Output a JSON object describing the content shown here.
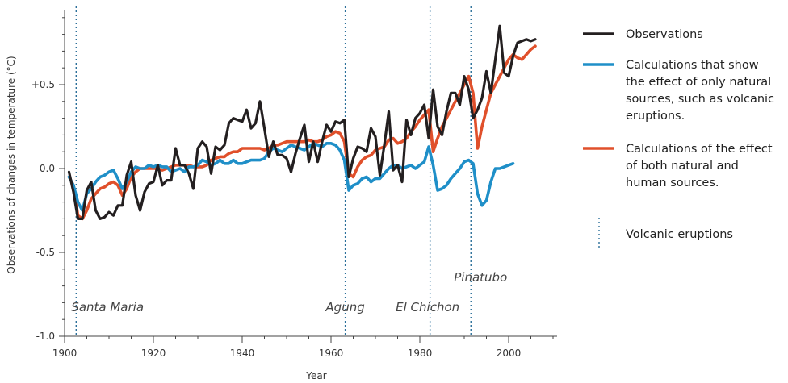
{
  "chart_data": {
    "type": "line",
    "xlabel": "Year",
    "ylabel": "Observations of changes in temperature (°C)",
    "xlim": [
      1900,
      2010
    ],
    "ylim": [
      -1.0,
      1.0
    ],
    "x_ticks": [
      1900,
      1920,
      1940,
      1960,
      1980,
      2000
    ],
    "y_ticks": [
      {
        "value": 0.5,
        "label": "+0.5"
      },
      {
        "value": 0.0,
        "label": "0.0"
      },
      {
        "value": -0.5,
        "label": "-0.5"
      },
      {
        "value": -1.0,
        "label": "-1.0"
      }
    ],
    "grid": false,
    "legend_position": "right",
    "series": [
      {
        "name": "Observations",
        "color": "#231f20",
        "x": [
          1901,
          1902,
          1903,
          1904,
          1905,
          1906,
          1907,
          1908,
          1909,
          1910,
          1911,
          1912,
          1913,
          1914,
          1915,
          1916,
          1917,
          1918,
          1919,
          1920,
          1921,
          1922,
          1923,
          1924,
          1925,
          1926,
          1927,
          1928,
          1929,
          1930,
          1931,
          1932,
          1933,
          1934,
          1935,
          1936,
          1937,
          1938,
          1939,
          1940,
          1941,
          1942,
          1943,
          1944,
          1945,
          1946,
          1947,
          1948,
          1949,
          1950,
          1951,
          1952,
          1953,
          1954,
          1955,
          1956,
          1957,
          1958,
          1959,
          1960,
          1961,
          1962,
          1963,
          1964,
          1965,
          1966,
          1967,
          1968,
          1969,
          1970,
          1971,
          1972,
          1973,
          1974,
          1975,
          1976,
          1977,
          1978,
          1979,
          1980,
          1981,
          1982,
          1983,
          1984,
          1985,
          1986,
          1987,
          1988,
          1989,
          1990,
          1991,
          1992,
          1993,
          1994,
          1995,
          1996,
          1997,
          1998,
          1999,
          2000,
          2001,
          2002,
          2003,
          2004,
          2005,
          2006
        ],
        "values": [
          -0.02,
          -0.14,
          -0.3,
          -0.3,
          -0.13,
          -0.08,
          -0.25,
          -0.3,
          -0.29,
          -0.26,
          -0.28,
          -0.22,
          -0.22,
          -0.04,
          0.04,
          -0.16,
          -0.25,
          -0.14,
          -0.09,
          -0.08,
          0.02,
          -0.1,
          -0.07,
          -0.07,
          0.12,
          0.02,
          0.02,
          -0.03,
          -0.12,
          0.12,
          0.16,
          0.13,
          -0.03,
          0.13,
          0.11,
          0.14,
          0.27,
          0.3,
          0.29,
          0.28,
          0.35,
          0.24,
          0.27,
          0.4,
          0.24,
          0.07,
          0.16,
          0.08,
          0.08,
          0.06,
          -0.02,
          0.09,
          0.18,
          0.26,
          0.04,
          0.16,
          0.04,
          0.16,
          0.26,
          0.22,
          0.28,
          0.27,
          0.29,
          -0.05,
          0.06,
          0.13,
          0.12,
          0.1,
          0.24,
          0.19,
          -0.04,
          0.14,
          0.34,
          -0.01,
          0.02,
          -0.08,
          0.29,
          0.2,
          0.3,
          0.33,
          0.38,
          0.18,
          0.47,
          0.25,
          0.2,
          0.34,
          0.45,
          0.45,
          0.38,
          0.55,
          0.47,
          0.3,
          0.35,
          0.42,
          0.58,
          0.45,
          0.65,
          0.85,
          0.57,
          0.55,
          0.67,
          0.75,
          0.76,
          0.77,
          0.76,
          0.77
        ]
      },
      {
        "name": "Calculations that show the effect of only natural sources, such as volcanic eruptions.",
        "color": "#1f8fc8",
        "x": [
          1901,
          1902,
          1903,
          1904,
          1905,
          1906,
          1907,
          1908,
          1909,
          1910,
          1911,
          1912,
          1913,
          1914,
          1915,
          1916,
          1917,
          1918,
          1919,
          1920,
          1921,
          1922,
          1923,
          1924,
          1925,
          1926,
          1927,
          1928,
          1929,
          1930,
          1931,
          1932,
          1933,
          1934,
          1935,
          1936,
          1937,
          1938,
          1939,
          1940,
          1941,
          1942,
          1943,
          1944,
          1945,
          1946,
          1947,
          1948,
          1949,
          1950,
          1951,
          1952,
          1953,
          1954,
          1955,
          1956,
          1957,
          1958,
          1959,
          1960,
          1961,
          1962,
          1963,
          1964,
          1965,
          1966,
          1967,
          1968,
          1969,
          1970,
          1971,
          1972,
          1973,
          1974,
          1975,
          1976,
          1977,
          1978,
          1979,
          1980,
          1981,
          1982,
          1983,
          1984,
          1985,
          1986,
          1987,
          1988,
          1989,
          1990,
          1991,
          1992,
          1993,
          1994,
          1995,
          1996,
          1997,
          1998,
          1999,
          2000,
          2001
        ],
        "values": [
          -0.05,
          -0.1,
          -0.2,
          -0.25,
          -0.15,
          -0.12,
          -0.08,
          -0.05,
          -0.04,
          -0.02,
          -0.01,
          -0.06,
          -0.12,
          -0.08,
          -0.02,
          0.01,
          0.0,
          0.0,
          0.02,
          0.01,
          0.02,
          0.01,
          0.01,
          -0.02,
          -0.01,
          0.0,
          -0.02,
          0.01,
          0.01,
          0.02,
          0.05,
          0.04,
          0.02,
          0.03,
          0.05,
          0.03,
          0.03,
          0.05,
          0.03,
          0.03,
          0.04,
          0.05,
          0.05,
          0.05,
          0.06,
          0.1,
          0.12,
          0.11,
          0.1,
          0.12,
          0.14,
          0.13,
          0.12,
          0.11,
          0.13,
          0.15,
          0.14,
          0.13,
          0.15,
          0.15,
          0.14,
          0.11,
          0.05,
          -0.13,
          -0.1,
          -0.09,
          -0.06,
          -0.05,
          -0.08,
          -0.06,
          -0.06,
          -0.03,
          0.0,
          0.02,
          0.02,
          0.0,
          0.01,
          0.02,
          0.0,
          0.02,
          0.04,
          0.13,
          0.02,
          -0.13,
          -0.12,
          -0.1,
          -0.06,
          -0.03,
          0.0,
          0.04,
          0.05,
          0.03,
          -0.15,
          -0.22,
          -0.19,
          -0.08,
          0.0,
          0.0,
          0.01,
          0.02,
          0.03
        ]
      },
      {
        "name": "Calculations of the effect of both natural and human sources.",
        "color": "#e0502b",
        "x": [
          1901,
          1902,
          1903,
          1904,
          1905,
          1906,
          1907,
          1908,
          1909,
          1910,
          1911,
          1912,
          1913,
          1914,
          1915,
          1916,
          1917,
          1918,
          1919,
          1920,
          1921,
          1922,
          1923,
          1924,
          1925,
          1926,
          1927,
          1928,
          1929,
          1930,
          1931,
          1932,
          1933,
          1934,
          1935,
          1936,
          1937,
          1938,
          1939,
          1940,
          1941,
          1942,
          1943,
          1944,
          1945,
          1946,
          1947,
          1948,
          1949,
          1950,
          1951,
          1952,
          1953,
          1954,
          1955,
          1956,
          1957,
          1958,
          1959,
          1960,
          1961,
          1962,
          1963,
          1964,
          1965,
          1966,
          1967,
          1968,
          1969,
          1970,
          1971,
          1972,
          1973,
          1974,
          1975,
          1976,
          1977,
          1978,
          1979,
          1980,
          1981,
          1982,
          1983,
          1984,
          1985,
          1986,
          1987,
          1988,
          1989,
          1990,
          1991,
          1992,
          1993,
          1994,
          1995,
          1996,
          1997,
          1998,
          1999,
          2000,
          2001,
          2002,
          2003,
          2004,
          2005,
          2006
        ],
        "values": [
          -0.05,
          -0.1,
          -0.28,
          -0.3,
          -0.25,
          -0.18,
          -0.15,
          -0.12,
          -0.11,
          -0.09,
          -0.08,
          -0.1,
          -0.16,
          -0.12,
          -0.05,
          -0.02,
          0.0,
          0.0,
          0.0,
          0.0,
          0.0,
          -0.01,
          0.0,
          0.01,
          0.02,
          0.02,
          0.02,
          0.02,
          0.01,
          0.01,
          0.01,
          0.02,
          0.05,
          0.06,
          0.07,
          0.07,
          0.09,
          0.1,
          0.1,
          0.12,
          0.12,
          0.12,
          0.12,
          0.12,
          0.11,
          0.12,
          0.14,
          0.14,
          0.15,
          0.16,
          0.16,
          0.16,
          0.16,
          0.16,
          0.17,
          0.16,
          0.16,
          0.17,
          0.19,
          0.2,
          0.22,
          0.21,
          0.16,
          -0.03,
          -0.05,
          0.01,
          0.05,
          0.07,
          0.08,
          0.11,
          0.12,
          0.13,
          0.17,
          0.18,
          0.15,
          0.16,
          0.18,
          0.22,
          0.25,
          0.29,
          0.32,
          0.35,
          0.1,
          0.18,
          0.25,
          0.3,
          0.35,
          0.4,
          0.45,
          0.5,
          0.55,
          0.45,
          0.12,
          0.25,
          0.35,
          0.45,
          0.5,
          0.55,
          0.6,
          0.65,
          0.68,
          0.66,
          0.65,
          0.68,
          0.71,
          0.73
        ]
      }
    ],
    "annotations": {
      "legend_marker_label": "Volcanic eruptions",
      "eruptions": [
        {
          "name": "Santa Maria",
          "year": 1902.6
        },
        {
          "name": "Agung",
          "year": 1963.2
        },
        {
          "name": "El Chichon",
          "year": 1982.3
        },
        {
          "name": "Pinatubo",
          "year": 1991.5
        }
      ]
    }
  }
}
